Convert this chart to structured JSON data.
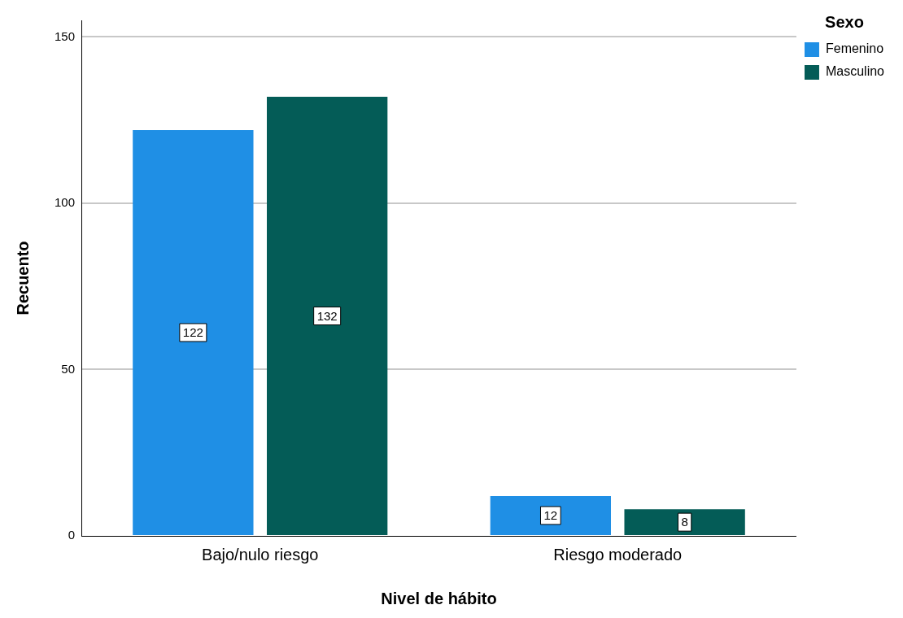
{
  "chart_data": {
    "type": "bar",
    "xlabel": "Nivel de hábito",
    "ylabel": "Recuento",
    "legend_title": "Sexo",
    "categories": [
      "Bajo/nulo riesgo",
      "Riesgo moderado"
    ],
    "series": [
      {
        "name": "Femenino",
        "color": "#1f8fe5",
        "values": [
          122,
          12
        ]
      },
      {
        "name": "Masculino",
        "color": "#045c57",
        "values": [
          132,
          8
        ]
      }
    ],
    "ylim": [
      0,
      155
    ],
    "yticks": [
      0,
      50,
      100,
      150
    ],
    "grid": "y",
    "legend": "top right",
    "data_labels": true
  }
}
